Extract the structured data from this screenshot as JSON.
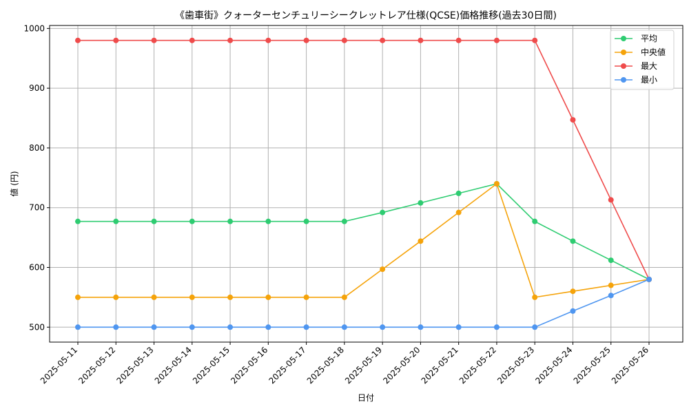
{
  "chart_data": {
    "type": "line",
    "title": "《歯車街》クォーターセンチュリーシークレットレア仕様(QCSE)価格推移(過去30日間)",
    "xlabel": "日付",
    "ylabel": "値 (円)",
    "ylim": [
      475,
      1005
    ],
    "yticks": [
      500,
      600,
      700,
      800,
      900,
      1000
    ],
    "grid": true,
    "legend_position": "top-right",
    "categories": [
      "2025-05-11",
      "2025-05-12",
      "2025-05-13",
      "2025-05-14",
      "2025-05-15",
      "2025-05-16",
      "2025-05-17",
      "2025-05-18",
      "2025-05-19",
      "2025-05-20",
      "2025-05-21",
      "2025-05-22",
      "2025-05-23",
      "2025-05-24",
      "2025-05-25",
      "2025-05-26"
    ],
    "series": [
      {
        "name": "平均",
        "color": "#2ecc71",
        "values": [
          677,
          677,
          677,
          677,
          677,
          677,
          677,
          677,
          692,
          708,
          724,
          740,
          677,
          644,
          612,
          580
        ]
      },
      {
        "name": "中央値",
        "color": "#f5a30a",
        "values": [
          550,
          550,
          550,
          550,
          550,
          550,
          550,
          550,
          597,
          644,
          692,
          740,
          550,
          560,
          570,
          580
        ]
      },
      {
        "name": "最大",
        "color": "#ef4b4b",
        "values": [
          980,
          980,
          980,
          980,
          980,
          980,
          980,
          980,
          980,
          980,
          980,
          980,
          980,
          847,
          713,
          580
        ]
      },
      {
        "name": "最小",
        "color": "#4f96f0",
        "values": [
          500,
          500,
          500,
          500,
          500,
          500,
          500,
          500,
          500,
          500,
          500,
          500,
          500,
          527,
          553,
          580
        ]
      }
    ]
  }
}
